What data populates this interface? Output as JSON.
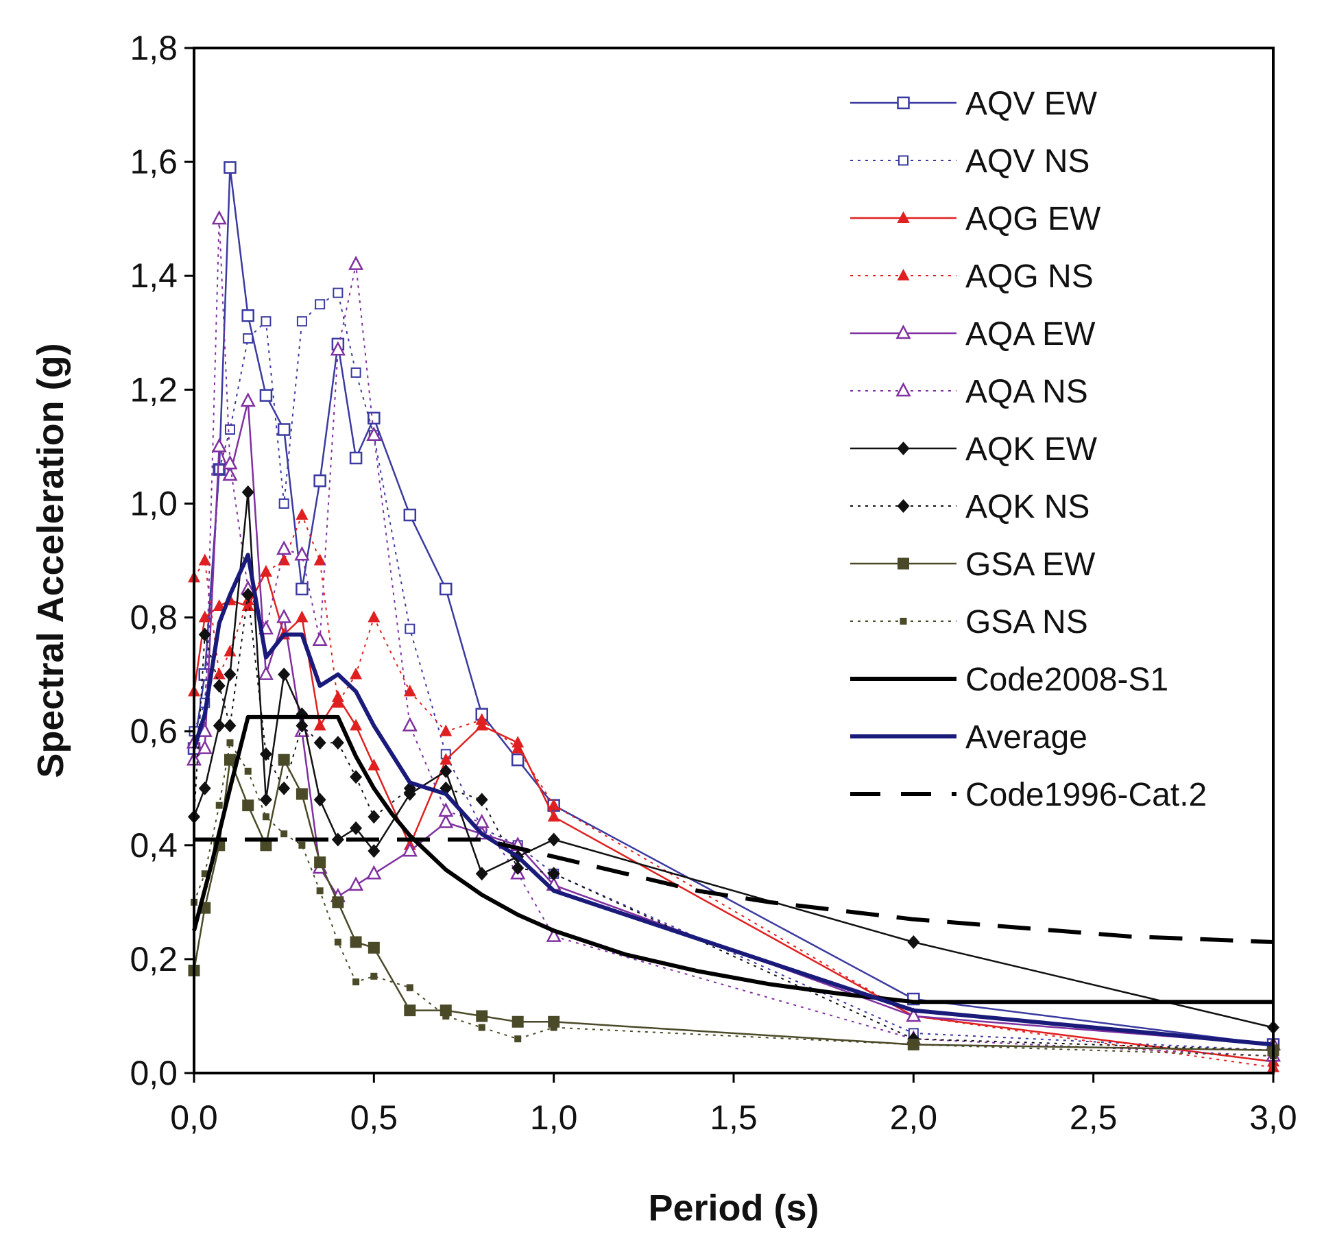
{
  "chart_data": {
    "type": "line",
    "title": "",
    "xlabel": "Period (s)",
    "ylabel": "Spectral Acceleration (g)",
    "xlim": [
      0,
      3
    ],
    "ylim": [
      0,
      1.8
    ],
    "xticks": [
      "0,0",
      "0,5",
      "1,0",
      "1,5",
      "2,0",
      "2,5",
      "3,0"
    ],
    "yticks": [
      "0,0",
      "0,2",
      "0,4",
      "0,6",
      "0,8",
      "1,0",
      "1,2",
      "1,4",
      "1,6",
      "1,8"
    ],
    "legend_position": "top-right",
    "series": [
      {
        "name": "AQV EW",
        "color": "#3a3aa0",
        "dash": "solid",
        "width": 2.5,
        "marker": "square-open",
        "x": [
          0,
          0.03,
          0.07,
          0.1,
          0.15,
          0.2,
          0.25,
          0.3,
          0.35,
          0.4,
          0.45,
          0.5,
          0.6,
          0.7,
          0.8,
          0.9,
          1.0,
          2.0,
          3.0
        ],
        "y": [
          0.57,
          0.7,
          1.06,
          1.59,
          1.33,
          1.19,
          1.13,
          0.85,
          1.04,
          1.28,
          1.08,
          1.15,
          0.98,
          0.85,
          0.63,
          0.55,
          0.47,
          0.13,
          0.05
        ]
      },
      {
        "name": "AQV NS",
        "color": "#3a3aa0",
        "dash": "dot",
        "width": 2,
        "marker": "square-open-small",
        "x": [
          0,
          0.03,
          0.07,
          0.1,
          0.15,
          0.2,
          0.25,
          0.3,
          0.35,
          0.4,
          0.45,
          0.5,
          0.6,
          0.7,
          0.8,
          0.9,
          1.0,
          2.0,
          3.0
        ],
        "y": [
          0.6,
          0.65,
          1.06,
          1.13,
          1.29,
          1.32,
          1.0,
          1.32,
          1.35,
          1.37,
          1.23,
          1.12,
          0.78,
          0.56,
          0.43,
          0.4,
          0.35,
          0.07,
          0.04
        ]
      },
      {
        "name": "AQG EW",
        "color": "#e02020",
        "dash": "solid",
        "width": 2.5,
        "marker": "triangle-filled",
        "x": [
          0,
          0.03,
          0.07,
          0.1,
          0.15,
          0.2,
          0.25,
          0.3,
          0.35,
          0.4,
          0.45,
          0.5,
          0.6,
          0.7,
          0.8,
          0.9,
          1.0,
          2.0,
          3.0
        ],
        "y": [
          0.67,
          0.8,
          0.82,
          0.83,
          0.82,
          0.88,
          0.77,
          0.8,
          0.61,
          0.66,
          0.61,
          0.54,
          0.4,
          0.55,
          0.61,
          0.58,
          0.45,
          0.1,
          0.02
        ]
      },
      {
        "name": "AQG NS",
        "color": "#e02020",
        "dash": "dot",
        "width": 2,
        "marker": "triangle-filled",
        "x": [
          0,
          0.03,
          0.07,
          0.1,
          0.15,
          0.2,
          0.25,
          0.3,
          0.35,
          0.4,
          0.45,
          0.5,
          0.6,
          0.7,
          0.8,
          0.9,
          1.0,
          2.0,
          3.0
        ],
        "y": [
          0.87,
          0.9,
          0.7,
          0.74,
          0.83,
          0.88,
          0.9,
          0.98,
          0.9,
          0.65,
          0.7,
          0.8,
          0.67,
          0.6,
          0.62,
          0.57,
          0.47,
          0.1,
          0.01
        ]
      },
      {
        "name": "AQA EW",
        "color": "#8030a0",
        "dash": "solid",
        "width": 2.5,
        "marker": "triangle-open",
        "x": [
          0,
          0.03,
          0.07,
          0.1,
          0.15,
          0.2,
          0.25,
          0.3,
          0.35,
          0.4,
          0.45,
          0.5,
          0.6,
          0.7,
          0.8,
          0.9,
          1.0,
          2.0,
          3.0
        ],
        "y": [
          0.55,
          0.57,
          1.1,
          1.05,
          1.18,
          0.7,
          0.8,
          0.6,
          0.36,
          0.31,
          0.33,
          0.35,
          0.39,
          0.44,
          0.42,
          0.4,
          0.33,
          0.1,
          0.05
        ]
      },
      {
        "name": "AQA NS",
        "color": "#8030a0",
        "dash": "dot",
        "width": 2,
        "marker": "triangle-open",
        "x": [
          0,
          0.03,
          0.07,
          0.1,
          0.15,
          0.2,
          0.25,
          0.3,
          0.35,
          0.4,
          0.45,
          0.5,
          0.6,
          0.7,
          0.8,
          0.9,
          1.0,
          2.0,
          3.0
        ],
        "y": [
          0.58,
          0.6,
          1.5,
          1.07,
          0.85,
          0.78,
          0.92,
          0.91,
          0.76,
          1.27,
          1.42,
          1.12,
          0.61,
          0.46,
          0.44,
          0.35,
          0.24,
          0.06,
          0.03
        ]
      },
      {
        "name": "AQK EW",
        "color": "#111111",
        "dash": "solid",
        "width": 2.5,
        "marker": "diamond-filled",
        "x": [
          0,
          0.03,
          0.07,
          0.1,
          0.15,
          0.2,
          0.25,
          0.3,
          0.35,
          0.4,
          0.45,
          0.5,
          0.6,
          0.7,
          0.8,
          0.9,
          1.0,
          2.0,
          3.0
        ],
        "y": [
          0.45,
          0.5,
          0.61,
          0.7,
          1.02,
          0.48,
          0.7,
          0.63,
          0.48,
          0.41,
          0.43,
          0.39,
          0.49,
          0.53,
          0.35,
          0.38,
          0.41,
          0.23,
          0.08
        ]
      },
      {
        "name": "AQK NS",
        "color": "#111111",
        "dash": "dot",
        "width": 2,
        "marker": "diamond-filled",
        "x": [
          0,
          0.03,
          0.07,
          0.1,
          0.15,
          0.2,
          0.25,
          0.3,
          0.35,
          0.4,
          0.45,
          0.5,
          0.6,
          0.7,
          0.8,
          0.9,
          1.0,
          2.0,
          3.0
        ],
        "y": [
          0.45,
          0.77,
          0.68,
          0.61,
          0.84,
          0.56,
          0.5,
          0.61,
          0.58,
          0.58,
          0.52,
          0.45,
          0.5,
          0.5,
          0.48,
          0.36,
          0.35,
          0.06,
          0.04
        ]
      },
      {
        "name": "GSA EW",
        "color": "#4a4a28",
        "dash": "solid",
        "width": 2.5,
        "marker": "square-filled",
        "x": [
          0,
          0.03,
          0.07,
          0.1,
          0.15,
          0.2,
          0.25,
          0.3,
          0.35,
          0.4,
          0.45,
          0.5,
          0.6,
          0.7,
          0.8,
          0.9,
          1.0,
          2.0,
          3.0
        ],
        "y": [
          0.18,
          0.29,
          0.4,
          0.55,
          0.47,
          0.4,
          0.55,
          0.49,
          0.37,
          0.3,
          0.23,
          0.22,
          0.11,
          0.11,
          0.1,
          0.09,
          0.09,
          0.05,
          0.04
        ]
      },
      {
        "name": "GSA NS",
        "color": "#4a4a28",
        "dash": "dot",
        "width": 2,
        "marker": "square-filled-small",
        "x": [
          0,
          0.03,
          0.07,
          0.1,
          0.15,
          0.2,
          0.25,
          0.3,
          0.35,
          0.4,
          0.45,
          0.5,
          0.6,
          0.7,
          0.8,
          0.9,
          1.0,
          2.0,
          3.0
        ],
        "y": [
          0.3,
          0.35,
          0.47,
          0.58,
          0.53,
          0.45,
          0.42,
          0.4,
          0.32,
          0.23,
          0.16,
          0.17,
          0.15,
          0.1,
          0.08,
          0.06,
          0.08,
          0.05,
          0.03
        ]
      },
      {
        "name": "Code2008-S1",
        "color": "#000000",
        "dash": "solid",
        "width": 6,
        "marker": "none",
        "x": [
          0,
          0.05,
          0.1,
          0.15,
          0.4,
          0.45,
          0.5,
          0.55,
          0.6,
          0.7,
          0.8,
          0.9,
          1.0,
          1.2,
          1.4,
          1.6,
          1.8,
          2.0,
          3.0
        ],
        "y": [
          0.25,
          0.37,
          0.5,
          0.625,
          0.625,
          0.556,
          0.5,
          0.455,
          0.417,
          0.357,
          0.313,
          0.278,
          0.25,
          0.208,
          0.179,
          0.156,
          0.139,
          0.125,
          0.125
        ]
      },
      {
        "name": "Average",
        "color": "#1a1a7a",
        "dash": "solid",
        "width": 6,
        "marker": "none",
        "x": [
          0,
          0.03,
          0.07,
          0.1,
          0.15,
          0.2,
          0.25,
          0.3,
          0.35,
          0.4,
          0.45,
          0.5,
          0.6,
          0.7,
          0.8,
          0.9,
          1.0,
          2.0,
          3.0
        ],
        "y": [
          0.57,
          0.63,
          0.79,
          0.84,
          0.91,
          0.73,
          0.77,
          0.77,
          0.68,
          0.7,
          0.67,
          0.61,
          0.51,
          0.49,
          0.42,
          0.38,
          0.32,
          0.11,
          0.05
        ]
      },
      {
        "name": "Code1996-Cat.2",
        "color": "#000000",
        "dash": "longdash",
        "width": 6,
        "marker": "none",
        "x": [
          0,
          0.8,
          0.9,
          1.0,
          1.2,
          1.4,
          1.6,
          1.8,
          2.0,
          2.2,
          2.4,
          2.6,
          2.8,
          3.0
        ],
        "y": [
          0.41,
          0.41,
          0.395,
          0.38,
          0.35,
          0.32,
          0.3,
          0.285,
          0.27,
          0.26,
          0.25,
          0.24,
          0.235,
          0.23
        ]
      }
    ]
  }
}
